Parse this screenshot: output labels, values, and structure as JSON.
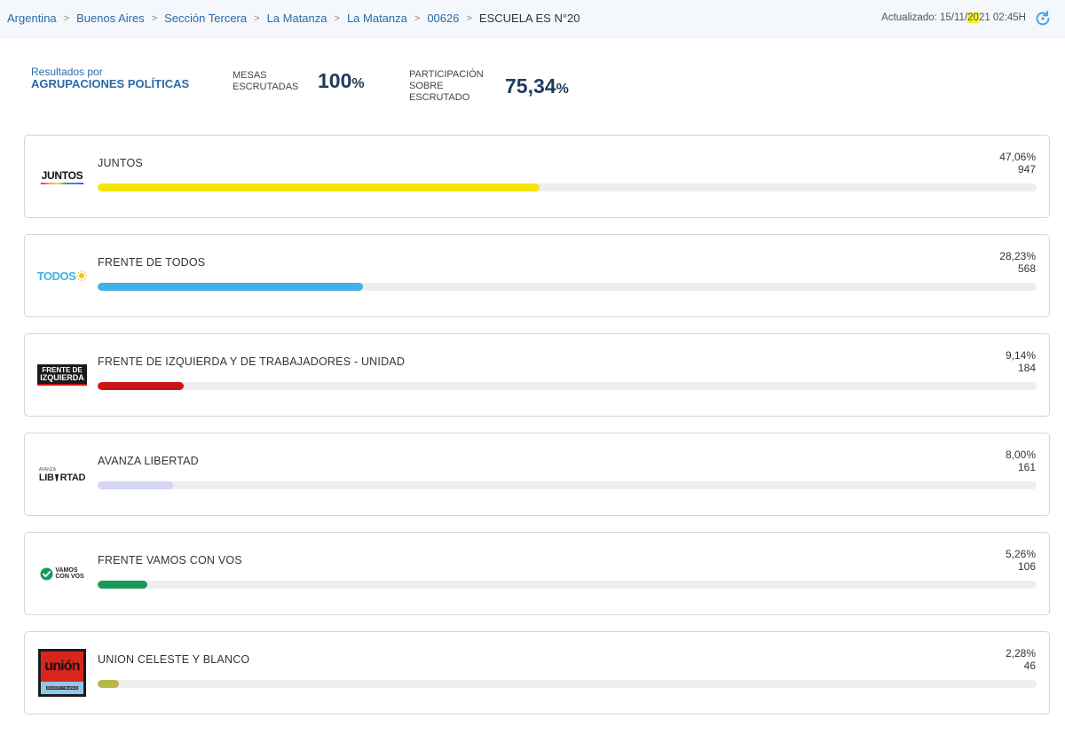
{
  "breadcrumb": [
    "Argentina",
    "Buenos Aires",
    "Sección Tercera",
    "La Matanza",
    "La Matanza",
    "00626",
    "ESCUELA ES N°20"
  ],
  "breadcrumb_separator": ">",
  "updated": {
    "prefix": "Actualizado: 15/11/",
    "highlight": "20",
    "suffix": "21 02:45H"
  },
  "summary": {
    "results_line1": "Resultados por",
    "results_line2": "AGRUPACIONES POLÍTICAS",
    "mesas_label1": "MESAS",
    "mesas_label2": "ESCRUTADAS",
    "mesas_value": "100",
    "mesas_unit": "%",
    "part_label1": "PARTICIPACIÓN",
    "part_label2": "SOBRE ESCRUTADO",
    "part_value": "75,34",
    "part_unit": "%"
  },
  "colors": {
    "juntos": "#f5e50a",
    "todos": "#3fb2e6",
    "izquierda": "#cc1417",
    "avanza": "#d4d4f7",
    "vamos": "#199a5a",
    "union": "#b8b847"
  },
  "parties": [
    {
      "name": "JUNTOS",
      "percent": "47,06%",
      "votes": "947",
      "fraction": 0.4706,
      "logo_text": "JUNTOS",
      "logo_icon": "juntos-logo"
    },
    {
      "name": "FRENTE DE TODOS",
      "percent": "28,23%",
      "votes": "568",
      "fraction": 0.2823,
      "logo_text": "TODOS",
      "logo_icon": "frente-de-todos-logo"
    },
    {
      "name": "FRENTE DE IZQUIERDA Y DE TRABAJADORES - UNIDAD",
      "percent": "9,14%",
      "votes": "184",
      "fraction": 0.0914,
      "logo_text_1": "FRENTE DE",
      "logo_text_2": "IZQUIERDA",
      "logo_icon": "frente-de-izquierda-logo"
    },
    {
      "name": "AVANZA LIBERTAD",
      "percent": "8,00%",
      "votes": "161",
      "fraction": 0.08,
      "logo_text_1": "AVANZA",
      "logo_text_2": "LIB",
      "logo_text_3": "RTAD",
      "logo_icon": "avanza-libertad-logo"
    },
    {
      "name": "FRENTE VAMOS CON VOS",
      "percent": "5,26%",
      "votes": "106",
      "fraction": 0.0526,
      "logo_text_1": "VAMOS",
      "logo_text_2": "CON VOS",
      "logo_icon": "vamos-con-vos-logo"
    },
    {
      "name": "UNION CELESTE Y BLANCO",
      "percent": "2,28%",
      "votes": "46",
      "fraction": 0.0228,
      "logo_text_1": "unión",
      "logo_text_2": "CELESTE Y BLANCO",
      "logo_icon": "union-celeste-y-blanco-logo"
    }
  ]
}
